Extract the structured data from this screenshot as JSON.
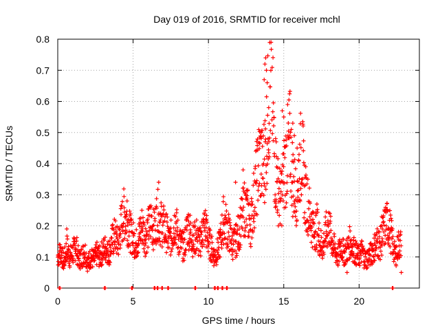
{
  "chart_data": {
    "type": "scatter",
    "title": "Day 019 of 2016, SRMTID for receiver mchl",
    "xlabel": "GPS time / hours",
    "ylabel": "SRMTID / TECUs",
    "xlim": [
      0,
      24
    ],
    "ylim": [
      0,
      0.8
    ],
    "x_ticks": [
      0,
      5,
      10,
      15,
      20
    ],
    "y_ticks": [
      0,
      0.1,
      0.2,
      0.3,
      0.4,
      0.5,
      0.6,
      0.7,
      0.8
    ],
    "x_tick_labels": [
      "0",
      "5",
      "10",
      "15",
      "20"
    ],
    "y_tick_labels": [
      "0",
      "0.1",
      "0.2",
      "0.3",
      "0.4",
      "0.5",
      "0.6",
      "0.7",
      "0.8"
    ],
    "grid": true,
    "marker": "+",
    "color": "#ff0000",
    "series": [
      {
        "name": "SRMTID",
        "x": [
          0.0,
          0.2,
          0.4,
          0.6,
          0.8,
          1.0,
          1.2,
          1.4,
          1.6,
          1.8,
          2.0,
          2.2,
          2.4,
          2.6,
          2.8,
          3.0,
          3.2,
          3.4,
          3.6,
          3.8,
          4.0,
          4.2,
          4.4,
          4.6,
          4.8,
          5.0,
          5.2,
          5.4,
          5.6,
          5.8,
          6.0,
          6.2,
          6.4,
          6.6,
          6.8,
          7.0,
          7.2,
          7.4,
          7.6,
          7.8,
          8.0,
          8.2,
          8.4,
          8.6,
          8.8,
          9.0,
          9.2,
          9.4,
          9.6,
          9.8,
          10.0,
          10.2,
          10.4,
          10.6,
          10.8,
          11.0,
          11.2,
          11.4,
          11.6,
          11.8,
          12.0,
          12.2,
          12.4,
          12.6,
          12.8,
          13.0,
          13.2,
          13.4,
          13.6,
          13.8,
          14.0,
          14.2,
          14.4,
          14.6,
          14.8,
          15.0,
          15.2,
          15.4,
          15.6,
          15.8,
          16.0,
          16.2,
          16.4,
          16.6,
          16.8,
          17.0,
          17.2,
          17.4,
          17.6,
          17.8,
          18.0,
          18.2,
          18.4,
          18.6,
          18.8,
          19.0,
          19.2,
          19.4,
          19.6,
          19.8,
          20.0,
          20.2,
          20.4,
          20.6,
          20.8,
          21.0,
          21.2,
          21.4,
          21.6,
          21.8,
          22.0,
          22.2,
          22.4,
          22.6
        ],
        "y": [
          0.1,
          0.12,
          0.08,
          0.13,
          0.1,
          0.11,
          0.14,
          0.09,
          0.1,
          0.12,
          0.08,
          0.1,
          0.09,
          0.11,
          0.1,
          0.12,
          0.13,
          0.11,
          0.15,
          0.17,
          0.14,
          0.2,
          0.24,
          0.22,
          0.18,
          0.16,
          0.14,
          0.17,
          0.2,
          0.16,
          0.19,
          0.22,
          0.18,
          0.24,
          0.21,
          0.2,
          0.18,
          0.15,
          0.17,
          0.22,
          0.16,
          0.14,
          0.13,
          0.2,
          0.18,
          0.15,
          0.17,
          0.14,
          0.18,
          0.2,
          0.15,
          0.13,
          0.1,
          0.12,
          0.15,
          0.22,
          0.2,
          0.17,
          0.14,
          0.15,
          0.18,
          0.22,
          0.26,
          0.24,
          0.2,
          0.28,
          0.35,
          0.42,
          0.38,
          0.45,
          0.6,
          0.68,
          0.4,
          0.32,
          0.28,
          0.36,
          0.42,
          0.48,
          0.35,
          0.3,
          0.38,
          0.45,
          0.3,
          0.27,
          0.22,
          0.18,
          0.2,
          0.15,
          0.13,
          0.18,
          0.2,
          0.15,
          0.12,
          0.1,
          0.14,
          0.11,
          0.12,
          0.15,
          0.13,
          0.11,
          0.1,
          0.12,
          0.09,
          0.1,
          0.11,
          0.13,
          0.15,
          0.14,
          0.18,
          0.21,
          0.2,
          0.15,
          0.1,
          0.14
        ]
      }
    ],
    "spread_note_points": [
      {
        "x": 13.8,
        "y": 0.74
      },
      {
        "x": 13.75,
        "y": 0.72
      },
      {
        "x": 13.85,
        "y": 0.7
      },
      {
        "x": 13.7,
        "y": 0.67
      },
      {
        "x": 13.9,
        "y": 0.66
      },
      {
        "x": 14.9,
        "y": 0.57
      },
      {
        "x": 15.0,
        "y": 0.55
      },
      {
        "x": 15.6,
        "y": 0.53
      },
      {
        "x": 15.7,
        "y": 0.49
      },
      {
        "x": 14.0,
        "y": 0.58
      },
      {
        "x": 13.5,
        "y": 0.5
      },
      {
        "x": 14.5,
        "y": 0.47
      },
      {
        "x": 12.3,
        "y": 0.38
      },
      {
        "x": 11.8,
        "y": 0.34
      },
      {
        "x": 6.7,
        "y": 0.34
      },
      {
        "x": 4.6,
        "y": 0.28
      },
      {
        "x": 21.5,
        "y": 0.23
      },
      {
        "x": 0.6,
        "y": 0.19
      },
      {
        "x": 22.8,
        "y": 0.05
      },
      {
        "x": 19.2,
        "y": 0.05
      }
    ],
    "zero_points_x": [
      0.1,
      3.1,
      4.9,
      6.4,
      6.6,
      6.9,
      7.3,
      9.1,
      10.4,
      10.6,
      10.9,
      11.2,
      22.2
    ]
  }
}
